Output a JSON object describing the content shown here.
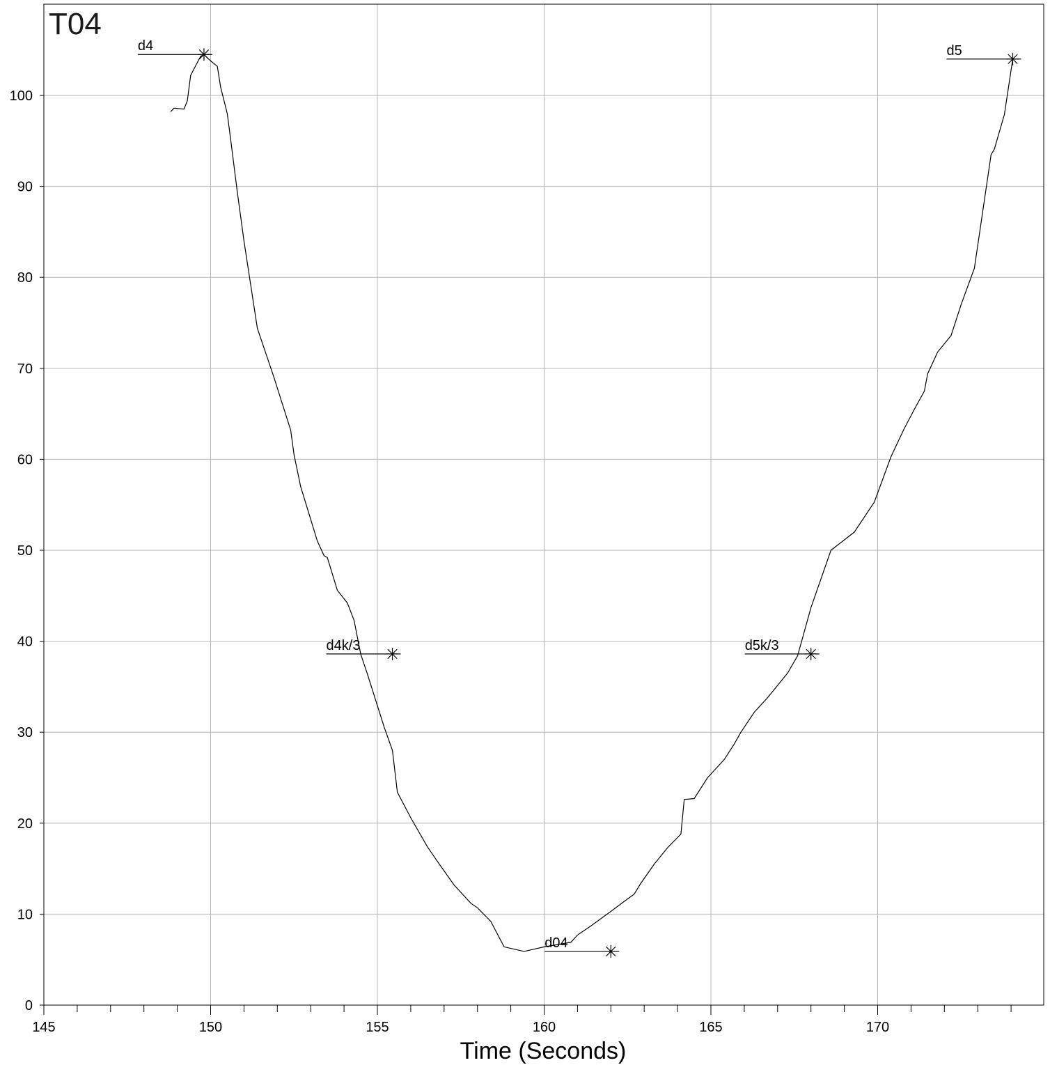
{
  "chart_data": {
    "type": "line",
    "title": "T04",
    "xlabel": "Time (Seconds)",
    "ylabel": "",
    "xlim": [
      145,
      175
    ],
    "ylim": [
      0,
      110
    ],
    "grid": true,
    "x_major_ticks": [
      145,
      150,
      155,
      160,
      165,
      170
    ],
    "x_minor_step": 1,
    "y_ticks": [
      0,
      10,
      20,
      30,
      40,
      50,
      60,
      70,
      80,
      90,
      100
    ],
    "series": [
      {
        "x": [
          148.8,
          148.9,
          149.2,
          149.3,
          149.4,
          149.5,
          149.7,
          149.8,
          150.0,
          150.2,
          150.3,
          150.5,
          150.6,
          150.8,
          151.0,
          151.4,
          151.9,
          152.4,
          152.5,
          152.7,
          153.2,
          153.4,
          153.5,
          153.8,
          154.1,
          154.3,
          154.5,
          154.7,
          155.2,
          155.45,
          155.6,
          156.0,
          156.5,
          156.8,
          157.3,
          157.8,
          158.0,
          158.4,
          158.8,
          159.4,
          160.0,
          160.8,
          161.0,
          161.4,
          162.0,
          162.4,
          162.7,
          162.9,
          163.3,
          163.7,
          164.1,
          164.2,
          164.5,
          164.9,
          165.4,
          165.7,
          165.9,
          166.3,
          166.7,
          167.3,
          167.6,
          168.0,
          168.6,
          169.3,
          169.9,
          170.4,
          170.8,
          171.1,
          171.4,
          171.5,
          171.8,
          172.2,
          172.5,
          172.9,
          173.4,
          173.5,
          173.8,
          174.05
        ],
        "y": [
          98.2,
          98.6,
          98.5,
          99.4,
          102.2,
          102.9,
          104.3,
          104.5,
          103.8,
          103.2,
          100.9,
          98.0,
          95.2,
          89.4,
          84.0,
          74.4,
          69.0,
          63.2,
          60.5,
          57.0,
          51.0,
          49.4,
          49.2,
          45.6,
          44.2,
          42.3,
          38.6,
          36.4,
          30.6,
          28.0,
          23.4,
          20.6,
          17.4,
          15.8,
          13.2,
          11.2,
          10.7,
          9.2,
          6.4,
          5.9,
          6.4,
          6.9,
          7.7,
          8.7,
          10.3,
          11.4,
          12.2,
          13.4,
          15.5,
          17.3,
          18.8,
          22.6,
          22.7,
          25.0,
          27.0,
          28.7,
          30.0,
          32.2,
          33.8,
          36.5,
          38.4,
          43.7,
          50.0,
          52.0,
          55.3,
          60.3,
          63.4,
          65.5,
          67.5,
          69.4,
          71.8,
          73.6,
          77.0,
          81.0,
          93.5,
          94.1,
          97.9,
          104.0
        ]
      }
    ],
    "annotations": [
      {
        "label": "d4",
        "x": 149.8,
        "y": 104.5
      },
      {
        "label": "d4k/3",
        "x": 155.45,
        "y": 38.6
      },
      {
        "label": "d04",
        "x": 162.0,
        "y": 5.9
      },
      {
        "label": "d5k/3",
        "x": 168.0,
        "y": 38.6
      },
      {
        "label": "d5",
        "x": 174.05,
        "y": 104.0
      }
    ]
  }
}
